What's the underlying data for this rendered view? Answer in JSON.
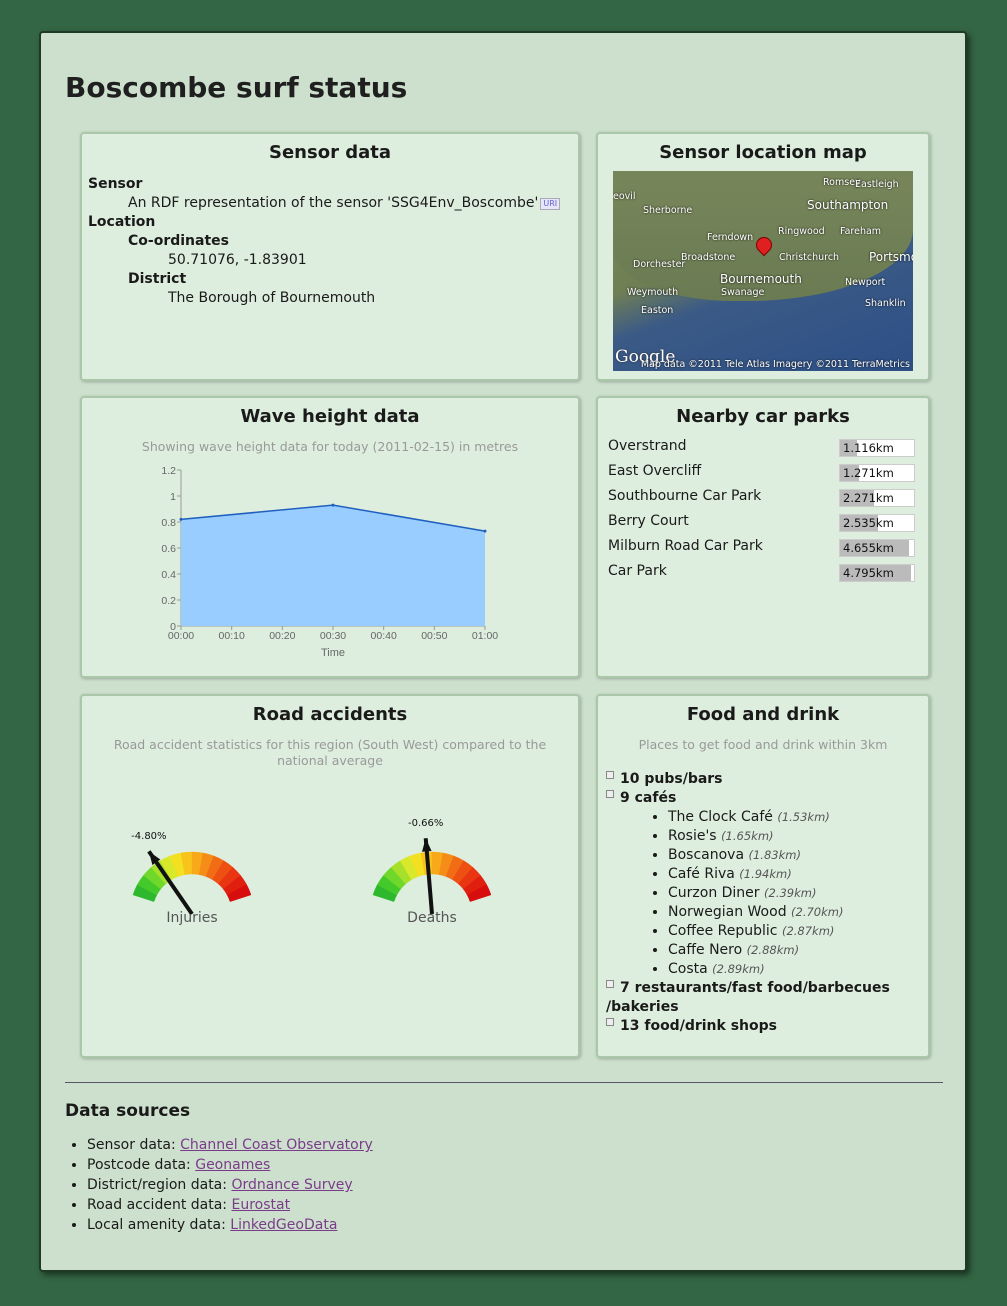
{
  "page_title": "Boscombe surf status",
  "sensor_panel": {
    "title": "Sensor data",
    "sensor_label": "Sensor",
    "sensor_text": "An RDF representation of the sensor 'SSG4Env_Boscombe'",
    "uri_badge": "URI",
    "location_label": "Location",
    "coords_label": "Co-ordinates",
    "coords_value": "50.71076, -1.83901",
    "district_label": "District",
    "district_value": "The Borough of Bournemouth"
  },
  "map_panel": {
    "title": "Sensor location map",
    "places": {
      "romsey": "Romsey",
      "eastleigh": "Eastleigh",
      "sherborne": "Sherborne",
      "southampton": "Southampton",
      "ferndown": "Ferndown",
      "ringwood": "Ringwood",
      "fareham": "Fareham",
      "dorchester": "Dorchester",
      "broadstone": "Broadstone",
      "christchurch": "Christchurch",
      "portsmouth": "Portsmo",
      "bournemouth": "Bournemouth",
      "newport": "Newport",
      "weymouth": "Weymouth",
      "swanage": "Swanage",
      "shanklin": "Shanklin",
      "easton": "Easton",
      "yeovil": "eovil"
    },
    "logo": "Google",
    "credit": "Map data ©2011 Tele Atlas  Imagery ©2011 TerraMetrics"
  },
  "wave_panel": {
    "title": "Wave height data",
    "subtitle": "Showing wave height data for today (2011-02-15) in metres",
    "chart_data": {
      "type": "area",
      "x": [
        "00:00",
        "00:30",
        "01:00"
      ],
      "values": [
        0.82,
        0.93,
        0.73
      ],
      "xticks": [
        "00:00",
        "00:10",
        "00:20",
        "00:30",
        "00:40",
        "00:50",
        "01:00"
      ],
      "yticks": [
        "0",
        "0.2",
        "0.4",
        "0.6",
        "0.8",
        "1",
        "1.2"
      ],
      "ylim": [
        0,
        1.2
      ],
      "xlabel": "Time",
      "ylabel": "",
      "fill_color": "#99ccff",
      "line_color": "#1f5fbf"
    }
  },
  "carparks_panel": {
    "title": "Nearby car parks",
    "max_km": 5.0,
    "items": [
      {
        "name": "Overstrand",
        "dist": "1.116km",
        "km": 1.116
      },
      {
        "name": "East Overcliff",
        "dist": "1.271km",
        "km": 1.271
      },
      {
        "name": "Southbourne Car Park",
        "dist": "2.271km",
        "km": 2.271
      },
      {
        "name": "Berry Court",
        "dist": "2.535km",
        "km": 2.535
      },
      {
        "name": "Milburn Road Car Park",
        "dist": "4.655km",
        "km": 4.655
      },
      {
        "name": "Car Park",
        "dist": "4.795km",
        "km": 4.795
      }
    ]
  },
  "accidents_panel": {
    "title": "Road accidents",
    "subtitle": "Road accident statistics for this region (South West) compared to the national average",
    "gauges": [
      {
        "label": "Injuries",
        "value_text": "-4.80%",
        "value": -4.8
      },
      {
        "label": "Deaths",
        "value_text": "-0.66%",
        "value": -0.66
      }
    ]
  },
  "food_panel": {
    "title": "Food and drink",
    "subtitle": "Places to get food and drink within 3km",
    "groups": {
      "pubs": "10 pubs/bars",
      "cafes": "9 cafés",
      "restaurants_line1": "7 restaurants/fast food/barbecues",
      "restaurants_line2": "/bakeries",
      "shops": "13 food/drink shops"
    },
    "cafes": [
      {
        "name": "The Clock Café",
        "dist": "(1.53km)"
      },
      {
        "name": "Rosie's",
        "dist": "(1.65km)"
      },
      {
        "name": "Boscanova",
        "dist": "(1.83km)"
      },
      {
        "name": "Café Riva",
        "dist": "(1.94km)"
      },
      {
        "name": "Curzon Diner",
        "dist": "(2.39km)"
      },
      {
        "name": "Norwegian Wood",
        "dist": "(2.70km)"
      },
      {
        "name": "Coffee Republic",
        "dist": "(2.87km)"
      },
      {
        "name": "Caffe Nero",
        "dist": "(2.88km)"
      },
      {
        "name": "Costa",
        "dist": "(2.89km)"
      }
    ]
  },
  "data_sources": {
    "title": "Data sources",
    "items": [
      {
        "label": "Sensor data: ",
        "link": "Channel Coast Observatory"
      },
      {
        "label": "Postcode data: ",
        "link": "Geonames"
      },
      {
        "label": "District/region data: ",
        "link": "Ordnance Survey"
      },
      {
        "label": "Road accident data: ",
        "link": "Eurostat"
      },
      {
        "label": "Local amenity data: ",
        "link": "LinkedGeoData"
      }
    ]
  }
}
